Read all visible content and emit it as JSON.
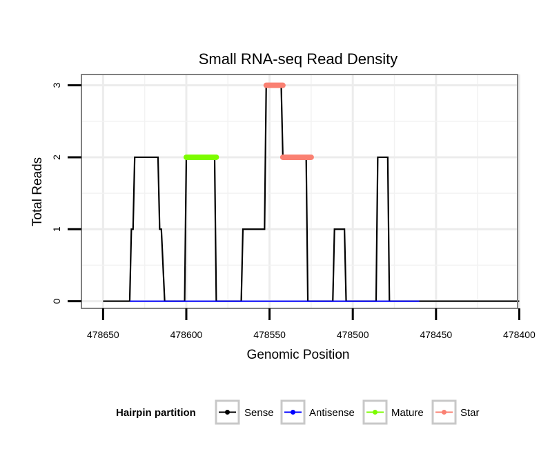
{
  "chart_data": {
    "type": "line",
    "title": "Small RNA-seq Read Density",
    "xlabel": "Genomic Position",
    "ylabel": "Total Reads",
    "xlim": [
      478663,
      478401
    ],
    "ylim": [
      -0.1,
      3.15
    ],
    "x_ticks": [
      478650,
      478600,
      478550,
      478500,
      478450,
      478400
    ],
    "x_tick_labels": [
      "478650",
      "478600",
      "478550",
      "478500",
      "478450",
      "478400"
    ],
    "y_ticks": [
      0,
      1,
      2,
      3
    ],
    "y_tick_labels": [
      "0",
      "1",
      "2",
      "3"
    ],
    "grid": true,
    "legend": {
      "title": "Hairpin partition",
      "position": "bottom",
      "entries": [
        {
          "label": "Sense",
          "color": "#000000"
        },
        {
          "label": "Antisense",
          "color": "#0000ff"
        },
        {
          "label": "Mature",
          "color": "#7cfc00"
        },
        {
          "label": "Star",
          "color": "#fa8072"
        }
      ]
    },
    "series": [
      {
        "name": "Sense",
        "color": "#000000",
        "x": [
          478650,
          478634,
          478633,
          478632,
          478631,
          478617,
          478616,
          478615,
          478613,
          478601,
          478600,
          478583,
          478582,
          478567,
          478566,
          478553,
          478552,
          478543,
          478542,
          478528,
          478527,
          478512,
          478511,
          478505,
          478504,
          478486,
          478485,
          478479,
          478478,
          478460,
          478459,
          478400
        ],
        "values": [
          0,
          0,
          1,
          1,
          2,
          2,
          1,
          1,
          0,
          0,
          2,
          2,
          0,
          0,
          1,
          1,
          3,
          3,
          2,
          2,
          0,
          0,
          1,
          1,
          0,
          0,
          2,
          2,
          0,
          0,
          0,
          0
        ]
      },
      {
        "name": "Antisense",
        "color": "#0000ff",
        "x": [
          478634,
          478460
        ],
        "values": [
          0,
          0
        ]
      },
      {
        "name": "Mature",
        "color": "#7cfc00",
        "x": [
          478600,
          478582
        ],
        "values": [
          2,
          2
        ]
      },
      {
        "name": "Star",
        "color": "#fa8072",
        "segments": [
          {
            "x": [
              478552,
              478542
            ],
            "values": [
              3,
              3
            ]
          },
          {
            "x": [
              478542,
              478525
            ],
            "values": [
              2,
              2
            ]
          }
        ]
      }
    ]
  }
}
